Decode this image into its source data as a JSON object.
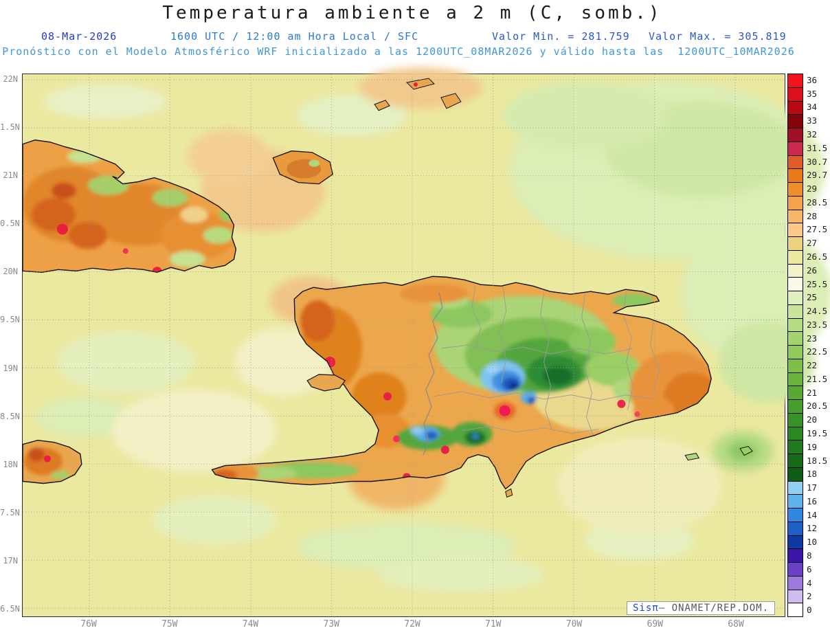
{
  "header": {
    "title": "Temperatura ambiente a 2 m (C, somb.)",
    "date": "08-Mar-2026",
    "time": "1600 UTC / 12:00 am Hora Local / SFC",
    "valor_min": "Valor Min. = 281.759",
    "valor_max": "Valor Max. = 305.819",
    "forecast": "Pronóstico con el Modelo Atmosférico WRF inicializado a las 1200UTC_08MAR2026 y válido hasta las  1200UTC_10MAR2026"
  },
  "axes": {
    "y_ticks": [
      "22N",
      "1.5N",
      "21N",
      "0.5N",
      "20N",
      "9.5N",
      "19N",
      "8.5N",
      "18N",
      "7.5N",
      "17N",
      "6.5N"
    ],
    "x_ticks": [
      "76W",
      "75W",
      "74W",
      "73W",
      "72W",
      "71W",
      "70W",
      "69W",
      "68W"
    ]
  },
  "colorbar": {
    "entries": [
      {
        "value": "36",
        "color": "#f5121f"
      },
      {
        "value": "35",
        "color": "#de0e1a"
      },
      {
        "value": "34",
        "color": "#b80a14"
      },
      {
        "value": "33",
        "color": "#840509"
      },
      {
        "value": "32",
        "color": "#9e1026"
      },
      {
        "value": "31.5",
        "color": "#cc2a4e"
      },
      {
        "value": "30.7",
        "color": "#e05a2a"
      },
      {
        "value": "29.7",
        "color": "#e87a1a"
      },
      {
        "value": "29",
        "color": "#ef8f2c"
      },
      {
        "value": "28.5",
        "color": "#f4a34a"
      },
      {
        "value": "28",
        "color": "#f7b76a"
      },
      {
        "value": "27.5",
        "color": "#fac98a"
      },
      {
        "value": "27",
        "color": "#ecd27c"
      },
      {
        "value": "26.5",
        "color": "#ebe8a0"
      },
      {
        "value": "26",
        "color": "#f3f1c8"
      },
      {
        "value": "25.5",
        "color": "#fbfae8"
      },
      {
        "value": "25",
        "color": "#e0edbc"
      },
      {
        "value": "24.5",
        "color": "#cbe49c"
      },
      {
        "value": "23.5",
        "color": "#b7db84"
      },
      {
        "value": "23",
        "color": "#a4d26e"
      },
      {
        "value": "22.5",
        "color": "#91c95b"
      },
      {
        "value": "22",
        "color": "#7ebf4a"
      },
      {
        "value": "21.5",
        "color": "#6ab43d"
      },
      {
        "value": "21",
        "color": "#58a934"
      },
      {
        "value": "20.5",
        "color": "#479e2d"
      },
      {
        "value": "20",
        "color": "#389327"
      },
      {
        "value": "19.5",
        "color": "#2b8722"
      },
      {
        "value": "19",
        "color": "#207b1e"
      },
      {
        "value": "18.5",
        "color": "#166b1a"
      },
      {
        "value": "18",
        "color": "#0e5c16"
      },
      {
        "value": "17",
        "color": "#90d1f2"
      },
      {
        "value": "16",
        "color": "#5db2ea"
      },
      {
        "value": "14",
        "color": "#3187dd"
      },
      {
        "value": "12",
        "color": "#1e60c5"
      },
      {
        "value": "10",
        "color": "#1139a2"
      },
      {
        "value": "8",
        "color": "#3b17a9"
      },
      {
        "value": "6",
        "color": "#6d40c5"
      },
      {
        "value": "4",
        "color": "#9c7bdc"
      },
      {
        "value": "2",
        "color": "#cebdee"
      },
      {
        "value": "0",
        "color": "#ffffff"
      }
    ]
  },
  "watermark": {
    "brand": "Sisπ",
    "separator": "– ",
    "org": "ONAMET/REP.DOM."
  },
  "palette": {
    "sea_base": "#ebe8a0",
    "grid": "#999999",
    "coastline": "#111111",
    "title_text": "#1a1a1a",
    "date_blue": "#2336d2",
    "header_blue": "#2879d2",
    "forecast_blue": "#3f97d9",
    "axis_gray": "#8a8a8a"
  }
}
